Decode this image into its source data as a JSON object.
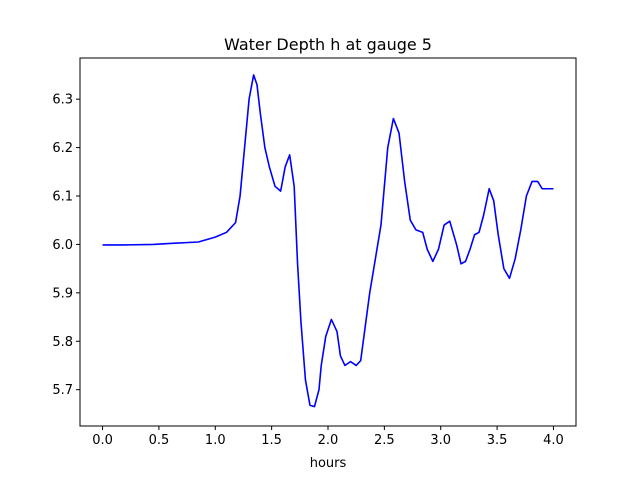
{
  "chart_data": {
    "type": "line",
    "title": "Water Depth h at gauge 5",
    "xlabel": "hours",
    "ylabel": "",
    "xlim": [
      -0.2,
      4.2
    ],
    "ylim": [
      5.625,
      6.385
    ],
    "xticks": [
      0.0,
      0.5,
      1.0,
      1.5,
      2.0,
      2.5,
      3.0,
      3.5,
      4.0
    ],
    "xtick_labels": [
      "0.0",
      "0.5",
      "1.0",
      "1.5",
      "2.0",
      "2.5",
      "3.0",
      "3.5",
      "4.0"
    ],
    "yticks": [
      5.7,
      5.8,
      5.9,
      6.0,
      6.1,
      6.2,
      6.3
    ],
    "ytick_labels": [
      "5.7",
      "5.8",
      "5.9",
      "6.0",
      "6.1",
      "6.2",
      "6.3"
    ],
    "grid": false,
    "series": [
      {
        "color": "#0000ff",
        "x": [
          0.0,
          0.2,
          0.45,
          0.6,
          0.85,
          1.0,
          1.1,
          1.18,
          1.22,
          1.26,
          1.3,
          1.34,
          1.37,
          1.4,
          1.44,
          1.48,
          1.53,
          1.58,
          1.62,
          1.66,
          1.7,
          1.73,
          1.76,
          1.8,
          1.84,
          1.88,
          1.92,
          1.94,
          1.98,
          2.03,
          2.08,
          2.11,
          2.15,
          2.2,
          2.25,
          2.29,
          2.33,
          2.37,
          2.42,
          2.47,
          2.53,
          2.58,
          2.63,
          2.68,
          2.73,
          2.78,
          2.84,
          2.88,
          2.93,
          2.98,
          3.03,
          3.08,
          3.14,
          3.18,
          3.22,
          3.26,
          3.3,
          3.34,
          3.38,
          3.43,
          3.47,
          3.51,
          3.56,
          3.61,
          3.66,
          3.71,
          3.76,
          3.81,
          3.86,
          3.9,
          3.94,
          3.98,
          4.0
        ],
        "y": [
          5.999,
          5.999,
          6.0,
          6.002,
          6.005,
          6.015,
          6.025,
          6.045,
          6.1,
          6.2,
          6.3,
          6.35,
          6.33,
          6.27,
          6.2,
          6.16,
          6.12,
          6.11,
          6.16,
          6.185,
          6.12,
          5.96,
          5.84,
          5.72,
          5.668,
          5.665,
          5.7,
          5.75,
          5.81,
          5.845,
          5.82,
          5.77,
          5.75,
          5.758,
          5.75,
          5.76,
          5.83,
          5.9,
          5.97,
          6.04,
          6.2,
          6.26,
          6.23,
          6.13,
          6.05,
          6.03,
          6.025,
          5.99,
          5.965,
          5.99,
          6.04,
          6.048,
          6.0,
          5.96,
          5.965,
          5.99,
          6.02,
          6.025,
          6.06,
          6.115,
          6.09,
          6.02,
          5.95,
          5.93,
          5.97,
          6.03,
          6.1,
          6.13,
          6.13,
          6.115,
          6.115,
          6.115,
          6.115
        ]
      }
    ]
  }
}
